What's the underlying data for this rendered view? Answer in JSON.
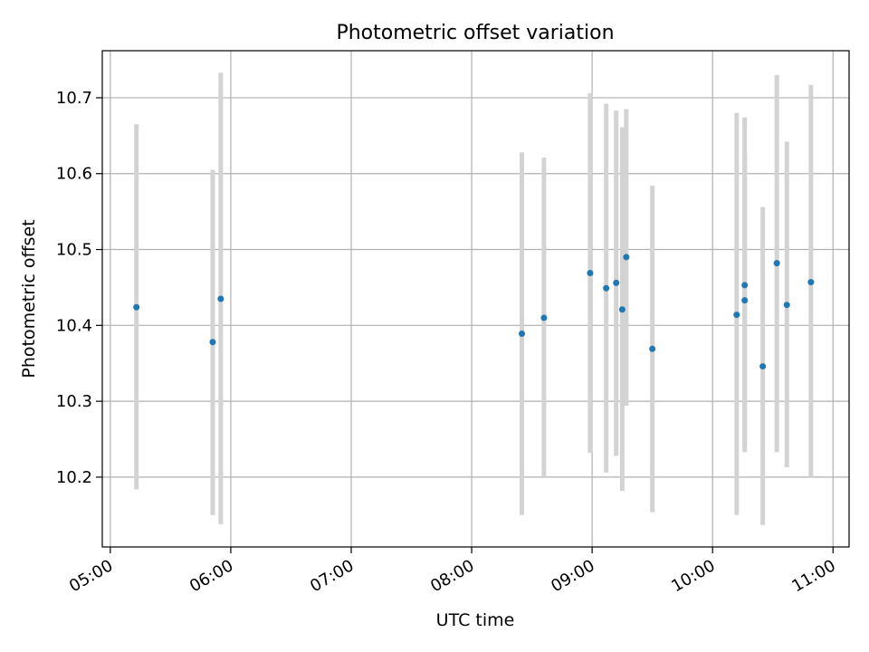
{
  "chart_data": {
    "type": "scatter",
    "title": "Photometric offset variation",
    "xlabel": "UTC time",
    "ylabel": "Photometric offset",
    "x_axis_kind": "time",
    "xlim": [
      "04:56",
      "11:08"
    ],
    "ylim": [
      10.108,
      10.762
    ],
    "x_ticks": [
      "05:00",
      "06:00",
      "07:00",
      "08:00",
      "09:00",
      "10:00",
      "11:00"
    ],
    "y_ticks": [
      10.2,
      10.3,
      10.4,
      10.5,
      10.6,
      10.7
    ],
    "y_tick_labels": [
      "10.2",
      "10.3",
      "10.4",
      "10.5",
      "10.6",
      "10.7"
    ],
    "grid": true,
    "point_color": "#1f77b4",
    "errorbar_color": "#d3d3d3",
    "points": [
      {
        "time": "05:13",
        "y": 10.424,
        "y_low": 10.184,
        "y_high": 10.665
      },
      {
        "time": "05:51",
        "y": 10.378,
        "y_low": 10.15,
        "y_high": 10.605
      },
      {
        "time": "05:55",
        "y": 10.435,
        "y_low": 10.138,
        "y_high": 10.733
      },
      {
        "time": "08:25",
        "y": 10.389,
        "y_low": 10.15,
        "y_high": 10.628
      },
      {
        "time": "08:36",
        "y": 10.41,
        "y_low": 10.2,
        "y_high": 10.621
      },
      {
        "time": "08:59",
        "y": 10.469,
        "y_low": 10.232,
        "y_high": 10.706
      },
      {
        "time": "09:07",
        "y": 10.449,
        "y_low": 10.206,
        "y_high": 10.692
      },
      {
        "time": "09:12",
        "y": 10.456,
        "y_low": 10.228,
        "y_high": 10.683
      },
      {
        "time": "09:15",
        "y": 10.421,
        "y_low": 10.182,
        "y_high": 10.661
      },
      {
        "time": "09:17",
        "y": 10.49,
        "y_low": 10.294,
        "y_high": 10.685
      },
      {
        "time": "09:30",
        "y": 10.369,
        "y_low": 10.154,
        "y_high": 10.584
      },
      {
        "time": "10:12",
        "y": 10.414,
        "y_low": 10.15,
        "y_high": 10.68
      },
      {
        "time": "10:16",
        "y": 10.453,
        "y_low": 10.242,
        "y_high": 10.624
      },
      {
        "time": "10:16",
        "y": 10.433,
        "y_low": 10.233,
        "y_high": 10.674
      },
      {
        "time": "10:25",
        "y": 10.346,
        "y_low": 10.137,
        "y_high": 10.556
      },
      {
        "time": "10:32",
        "y": 10.482,
        "y_low": 10.233,
        "y_high": 10.73
      },
      {
        "time": "10:37",
        "y": 10.427,
        "y_low": 10.213,
        "y_high": 10.642
      },
      {
        "time": "10:49",
        "y": 10.457,
        "y_low": 10.2,
        "y_high": 10.717
      }
    ]
  }
}
